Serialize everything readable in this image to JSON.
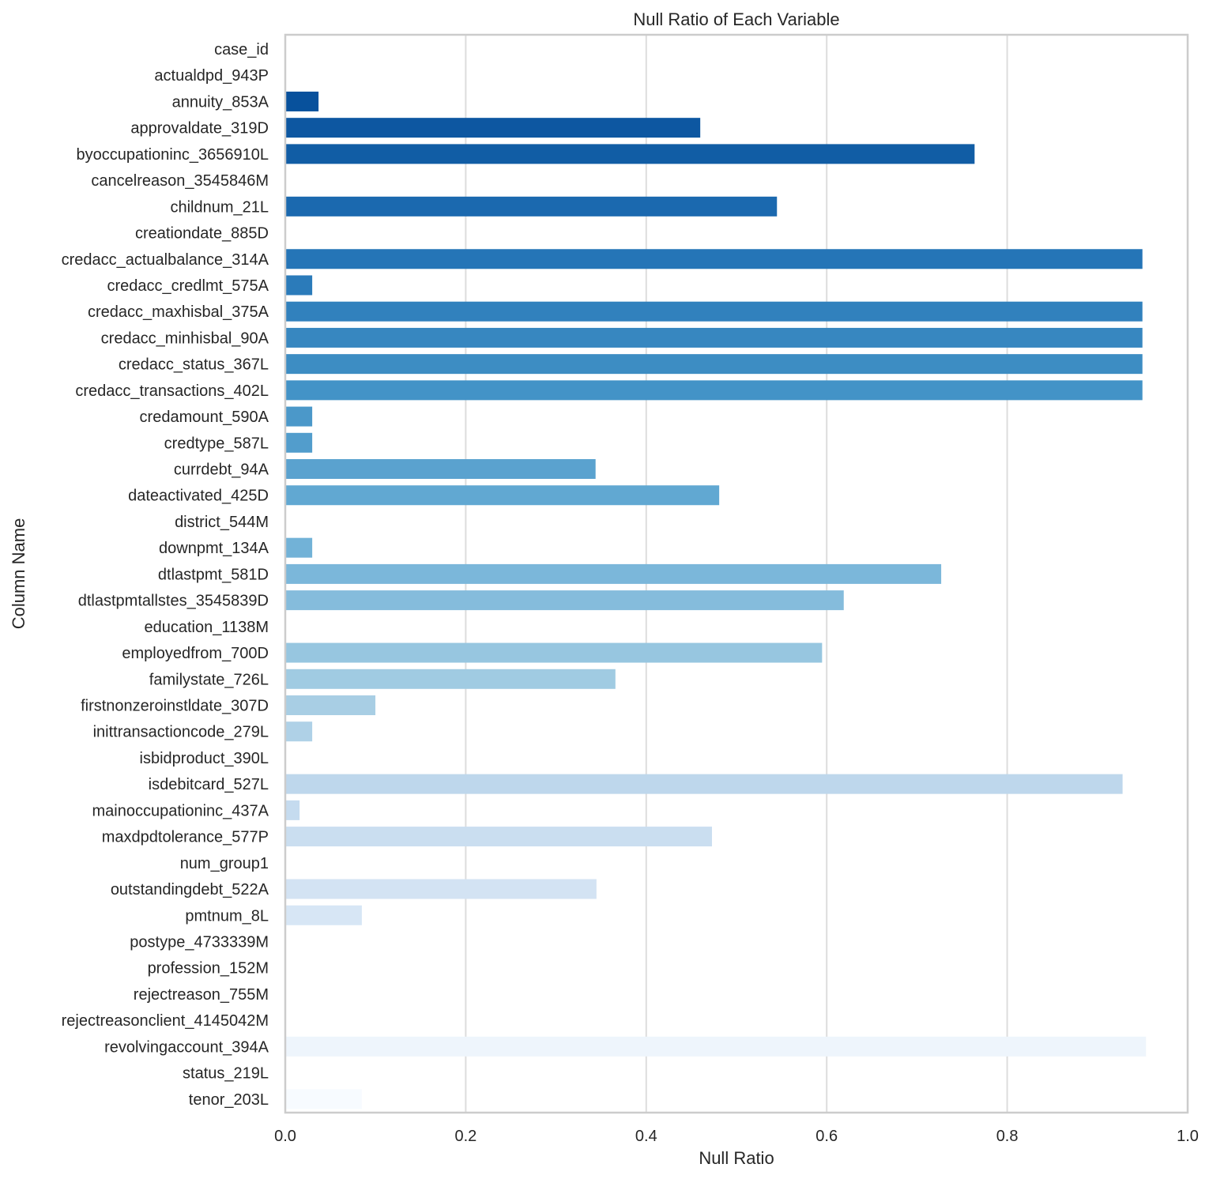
{
  "chart_data": {
    "type": "bar",
    "orientation": "horizontal",
    "title": "Null Ratio of Each Variable",
    "xlabel": "Null Ratio",
    "ylabel": "Column Name",
    "xlim": [
      0.0,
      1.0
    ],
    "xticks": [
      0.0,
      0.2,
      0.4,
      0.6,
      0.8,
      1.0
    ],
    "xtick_labels": [
      "0.0",
      "0.2",
      "0.4",
      "0.6",
      "0.8",
      "1.0"
    ],
    "grid": "vertical",
    "palette": "Blues_r",
    "palette_colors": [
      "#08306b",
      "#08519c",
      "#2171b5",
      "#4292c6",
      "#6baed6",
      "#9ecae1",
      "#c6dbef",
      "#deebf7",
      "#f7fbff"
    ],
    "categories": [
      "case_id",
      "actualdpd_943P",
      "annuity_853A",
      "approvaldate_319D",
      "byoccupationinc_3656910L",
      "cancelreason_3545846M",
      "childnum_21L",
      "creationdate_885D",
      "credacc_actualbalance_314A",
      "credacc_credlmt_575A",
      "credacc_maxhisbal_375A",
      "credacc_minhisbal_90A",
      "credacc_status_367L",
      "credacc_transactions_402L",
      "credamount_590A",
      "credtype_587L",
      "currdebt_94A",
      "dateactivated_425D",
      "district_544M",
      "downpmt_134A",
      "dtlastpmt_581D",
      "dtlastpmtallstes_3545839D",
      "education_1138M",
      "employedfrom_700D",
      "familystate_726L",
      "firstnonzeroinstldate_307D",
      "inittransactioncode_279L",
      "isbidproduct_390L",
      "isdebitcard_527L",
      "mainoccupationinc_437A",
      "maxdpdtolerance_577P",
      "num_group1",
      "outstandingdebt_522A",
      "pmtnum_8L",
      "postype_4733339M",
      "profession_152M",
      "rejectreason_755M",
      "rejectreasonclient_4145042M",
      "revolvingaccount_394A",
      "status_219L",
      "tenor_203L"
    ],
    "values": [
      0.0,
      0.0,
      0.036,
      0.459,
      0.763,
      0.0,
      0.544,
      0.0,
      0.949,
      0.029,
      0.949,
      0.949,
      0.949,
      0.949,
      0.029,
      0.029,
      0.343,
      0.48,
      0.0,
      0.029,
      0.726,
      0.618,
      0.0,
      0.594,
      0.365,
      0.099,
      0.029,
      0.0,
      0.927,
      0.015,
      0.472,
      0.0,
      0.344,
      0.084,
      0.0,
      0.0,
      0.0,
      0.0,
      0.953,
      0.0,
      0.084
    ]
  }
}
